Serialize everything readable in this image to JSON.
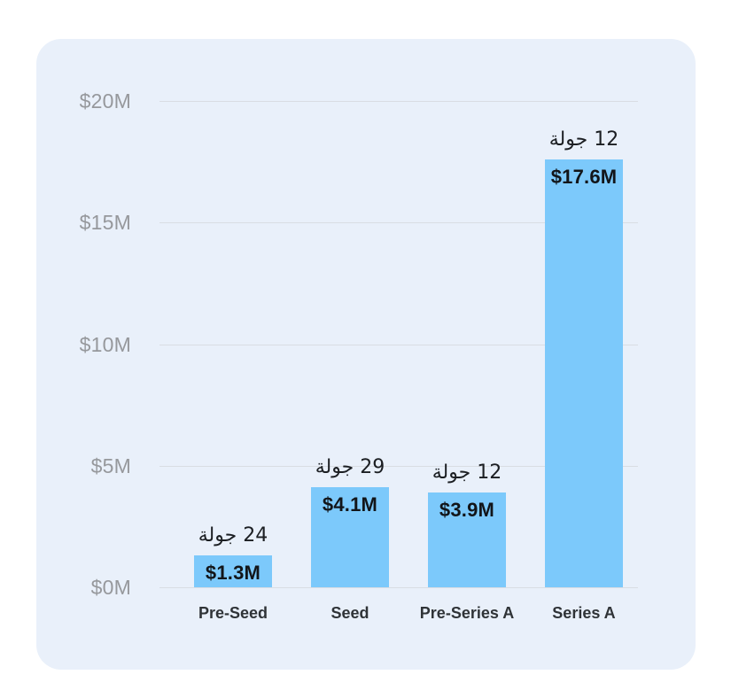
{
  "page": {
    "background": "#ffffff"
  },
  "card": {
    "background": "#e9f0fa"
  },
  "chart_data": {
    "type": "bar",
    "title": "",
    "xlabel": "",
    "ylabel": "",
    "categories": [
      "Pre-Seed",
      "Seed",
      "Pre-Series A",
      "Series A"
    ],
    "values": [
      1.3,
      4.1,
      3.9,
      17.6
    ],
    "value_labels": [
      "$1.3M",
      "$4.1M",
      "$3.9M",
      "$17.6M"
    ],
    "rounds_labels": [
      "24 جولة",
      "29 جولة",
      "12 جولة",
      "12 جولة"
    ],
    "rounds_counts": [
      24,
      29,
      12,
      12
    ],
    "y_axis": {
      "range": [
        0,
        20
      ],
      "ticks": [
        {
          "label": "$0M",
          "value": 0
        },
        {
          "label": "$5M",
          "value": 5
        },
        {
          "label": "$10M",
          "value": 10
        },
        {
          "label": "$15M",
          "value": 15
        },
        {
          "label": "$20M",
          "value": 20
        }
      ]
    },
    "grid": true,
    "legend": false,
    "colors": {
      "bar": "#7cc9fb",
      "gridline": "#d9dde3",
      "tick_label": "#96989c",
      "value_label": "#121519",
      "rounds_label": "#1b1e22",
      "category_label": "#2f3337"
    }
  }
}
